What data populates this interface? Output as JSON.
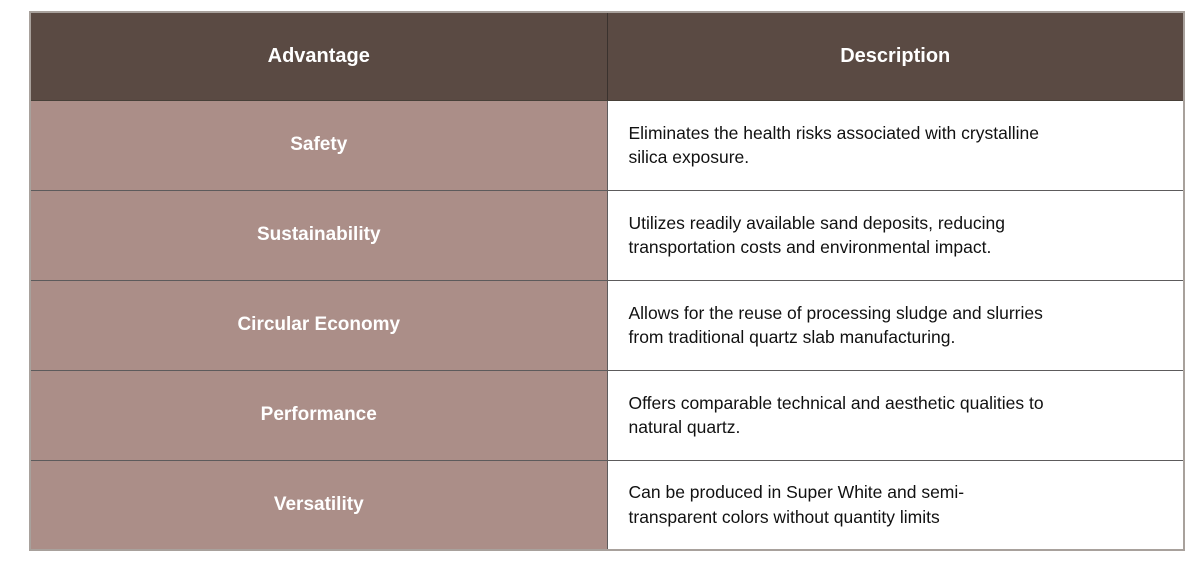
{
  "table": {
    "headers": {
      "advantage": "Advantage",
      "description": "Description"
    },
    "rows": [
      {
        "advantage": "Safety",
        "description": "Eliminates the health risks associated with crystalline silica exposure."
      },
      {
        "advantage": "Sustainability",
        "description": "Utilizes readily available sand deposits, reducing transportation costs and environmental impact."
      },
      {
        "advantage": "Circular Economy",
        "description": "Allows for the reuse of processing sludge and slurries from traditional quartz slab manufacturing."
      },
      {
        "advantage": "Performance",
        "description": "Offers comparable technical and aesthetic qualities to natural quartz."
      },
      {
        "advantage": "Versatility",
        "description": "Can be produced in Super White and semi-transparent colors without quantity limits"
      }
    ],
    "colors": {
      "header_bg": "#5a4a43",
      "header_text": "#ffffff",
      "advantage_cell_bg": "#ab8e88",
      "advantage_cell_text": "#ffffff",
      "description_cell_bg": "#ffffff",
      "description_cell_text": "#111111",
      "grid_line": "#5d5b5c",
      "outer_border": "#a8a19c"
    }
  }
}
